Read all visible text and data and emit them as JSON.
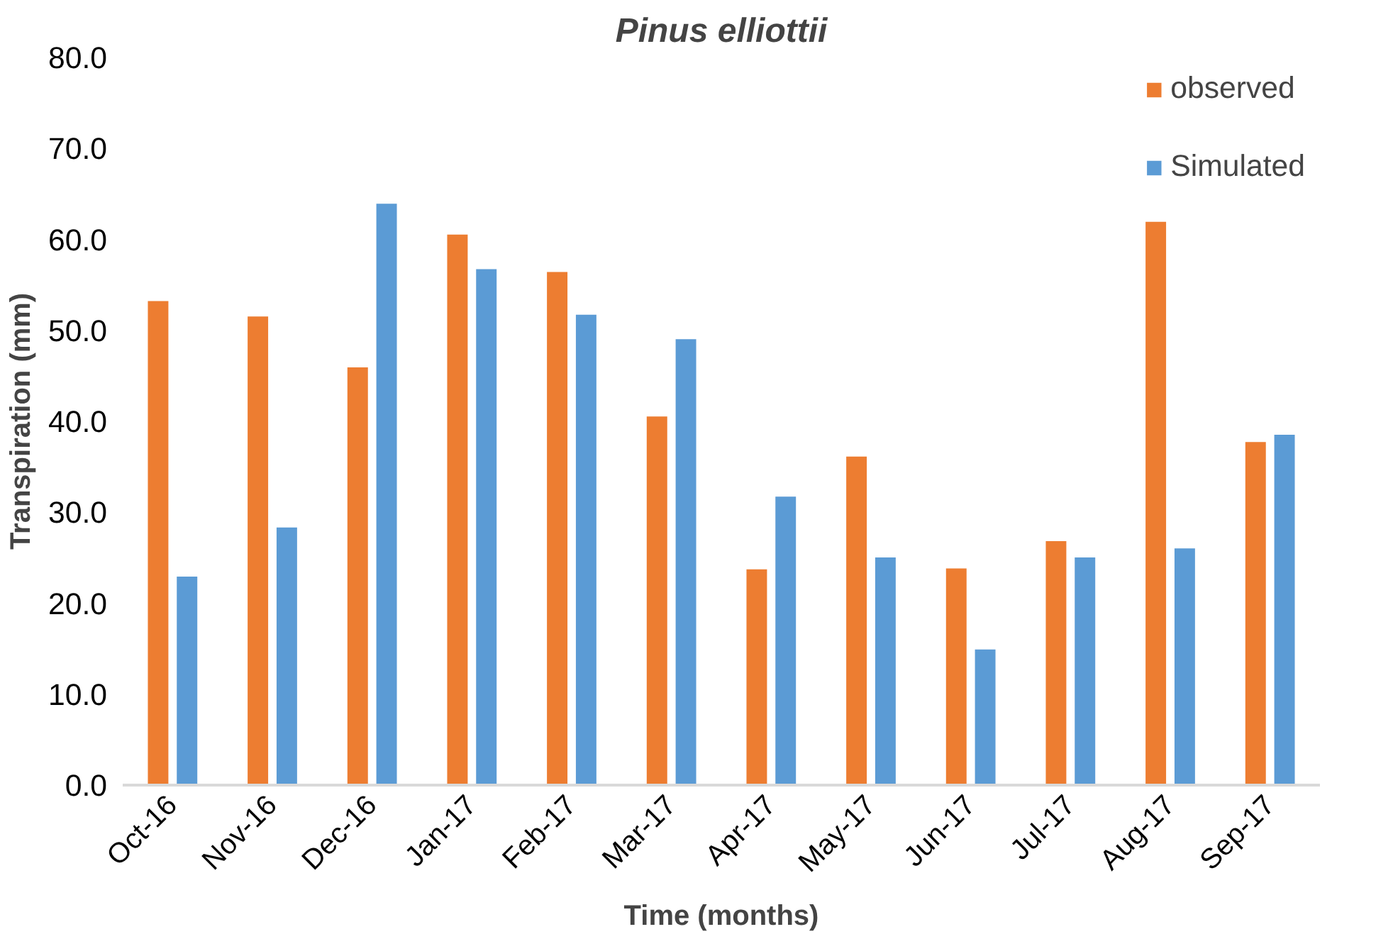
{
  "chart_data": {
    "type": "bar",
    "title": "Pinus elliottii",
    "xlabel": "Time (months)",
    "ylabel": "Transpiration (mm)",
    "categories": [
      "Oct-16",
      "Nov-16",
      "Dec-16",
      "Jan-17",
      "Feb-17",
      "Mar-17",
      "Apr-17",
      "May-17",
      "Jun-17",
      "Jul-17",
      "Aug-17",
      "Sep-17"
    ],
    "series": [
      {
        "name": "observed",
        "color": "#ed7d31",
        "values": [
          53.3,
          51.6,
          46.0,
          60.6,
          56.5,
          40.6,
          23.8,
          36.2,
          23.9,
          26.9,
          62.0,
          37.8
        ]
      },
      {
        "name": "Simulated",
        "color": "#5b9bd5",
        "values": [
          23.0,
          28.4,
          64.0,
          56.8,
          51.8,
          49.1,
          31.8,
          25.1,
          15.0,
          25.1,
          26.1,
          38.6
        ]
      }
    ],
    "ylim": [
      0,
      80
    ],
    "yticks": [
      {
        "value": 0,
        "label": "0.0"
      },
      {
        "value": 10,
        "label": "10.0"
      },
      {
        "value": 20,
        "label": "20.0"
      },
      {
        "value": 30,
        "label": "30.0"
      },
      {
        "value": 40,
        "label": "40.0"
      },
      {
        "value": 50,
        "label": "50.0"
      },
      {
        "value": 60,
        "label": "60.0"
      },
      {
        "value": 70,
        "label": "70.0"
      },
      {
        "value": 80,
        "label": "80.0"
      }
    ],
    "grid": false,
    "legend": "top right"
  }
}
